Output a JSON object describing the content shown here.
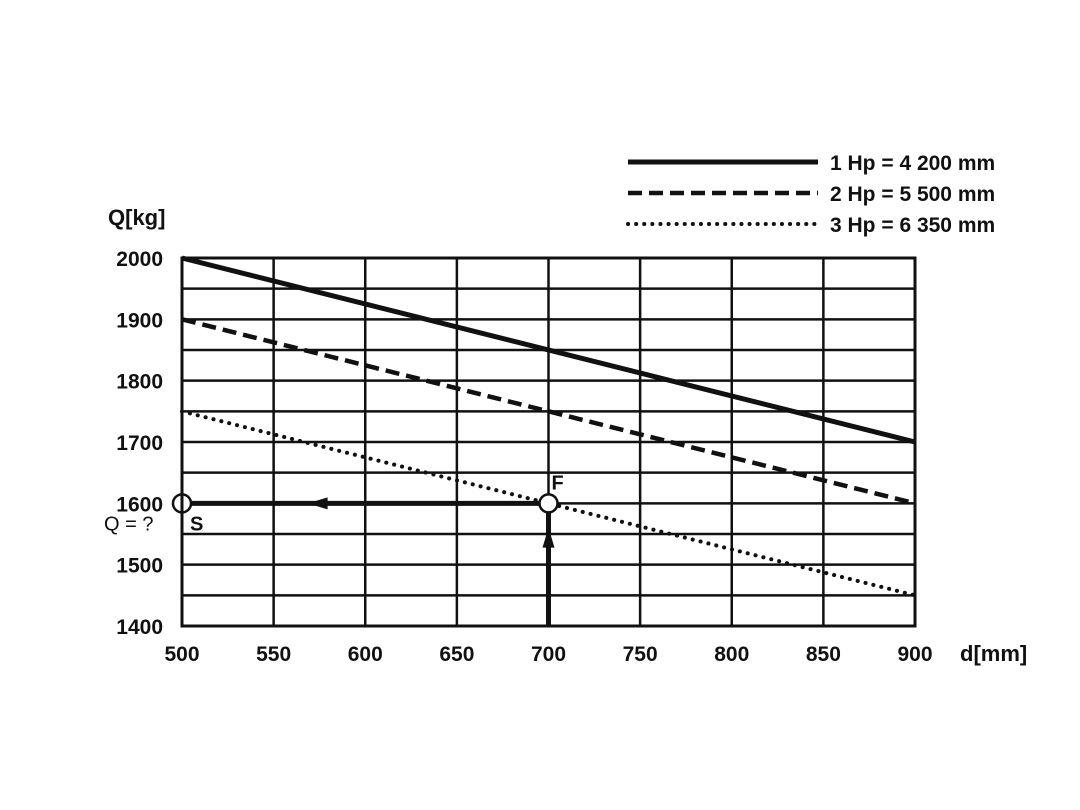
{
  "chart_data": {
    "type": "line",
    "ylabel": "Q[kg]",
    "xlabel": "d[mm]",
    "xlim": [
      500,
      900
    ],
    "ylim": [
      1400,
      2000
    ],
    "x_ticks": [
      "500",
      "550",
      "600",
      "650",
      "700",
      "750",
      "800",
      "850",
      "900"
    ],
    "y_ticks": [
      "1400",
      "1500",
      "1600",
      "1700",
      "1800",
      "1900",
      "2000"
    ],
    "grid": true,
    "legend_position": "top-right",
    "series": [
      {
        "name": "1 Hp = 4 200 mm",
        "style": "solid",
        "x": [
          500,
          900
        ],
        "y": [
          2000,
          1700
        ]
      },
      {
        "name": "2 Hp = 5 500 mm",
        "style": "dashed",
        "x": [
          500,
          900
        ],
        "y": [
          1900,
          1600
        ]
      },
      {
        "name": "3 Hp = 6 350 mm",
        "style": "dotted",
        "x": [
          500,
          900
        ],
        "y": [
          1750,
          1450
        ]
      }
    ],
    "annotations": {
      "point_f": {
        "label": "F",
        "x": 700,
        "y": 1600
      },
      "point_s": {
        "label": "S",
        "x": 500,
        "y": 1600
      },
      "question": "Q = ?",
      "vertical_arrow": {
        "x": 700,
        "from_y": 1400,
        "to_y": 1600
      },
      "horizontal_arrow": {
        "y": 1600,
        "from_x": 700,
        "to_x": 500
      }
    }
  }
}
